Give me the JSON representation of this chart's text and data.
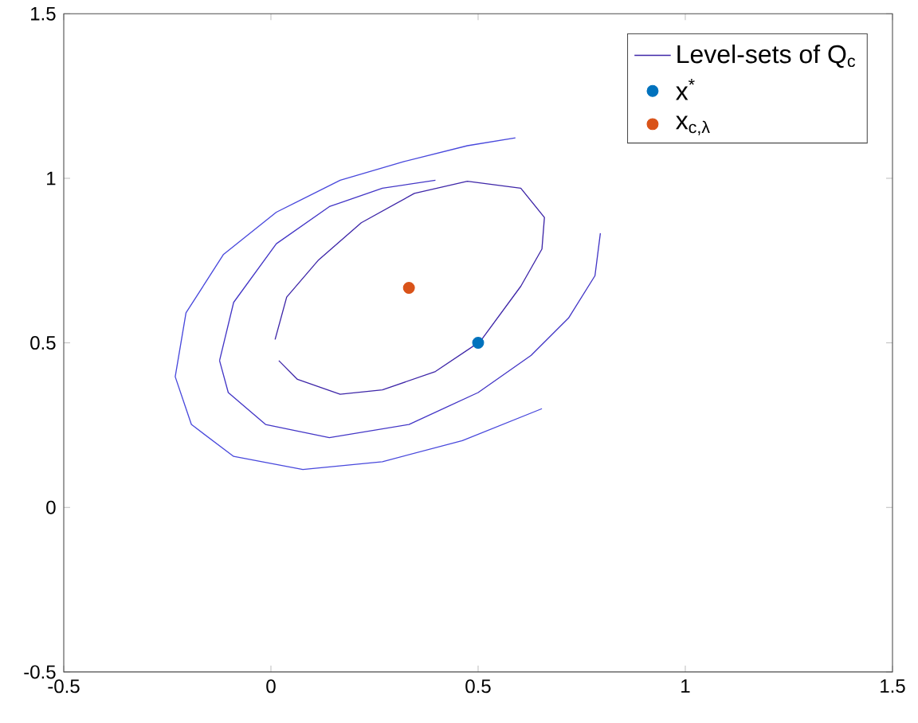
{
  "chart_data": {
    "type": "scatter",
    "xlim": [
      -0.5,
      1.5
    ],
    "ylim": [
      -0.5,
      1.5
    ],
    "xticks": [
      -0.5,
      0,
      0.5,
      1,
      1.5
    ],
    "yticks": [
      -0.5,
      0,
      0.5,
      1,
      1.5
    ],
    "legend": "top right",
    "series": [
      {
        "type": "line",
        "name": "Level-sets of Q$_{c}$",
        "color": "#3e26a8",
        "marker": "none",
        "x": [
          0.01,
          0.038,
          0.115,
          0.218,
          0.346,
          0.474,
          0.603,
          0.66,
          0.654,
          0.603,
          0.505,
          0.397,
          0.269,
          0.167,
          0.064,
          0.019
        ],
        "values": [
          0.51,
          0.639,
          0.752,
          0.865,
          0.954,
          0.991,
          0.97,
          0.881,
          0.785,
          0.672,
          0.504,
          0.413,
          0.357,
          0.344,
          0.389,
          0.446
        ]
      },
      {
        "type": "line",
        "color": "#4336c6",
        "marker": "none",
        "x": [
          -0.124,
          -0.09,
          0.013,
          0.141,
          0.269,
          0.397,
          null,
          0.795,
          0.782,
          0.718,
          0.628,
          0.5,
          0.333,
          0.141,
          -0.013,
          -0.103,
          -0.124
        ],
        "values": [
          0.446,
          0.623,
          0.801,
          0.914,
          0.97,
          0.994,
          null,
          0.833,
          0.704,
          0.575,
          0.462,
          0.349,
          0.252,
          0.212,
          0.252,
          0.349,
          0.446
        ]
      },
      {
        "type": "line",
        "color": "#4848dc",
        "marker": "none",
        "x": [
          0.654,
          0.462,
          0.269,
          0.077,
          -0.09,
          -0.192,
          -0.231,
          -0.205,
          -0.115,
          0.013,
          0.167,
          0.321,
          0.474,
          0.59
        ],
        "values": [
          0.3,
          0.203,
          0.139,
          0.115,
          0.155,
          0.252,
          0.397,
          0.591,
          0.768,
          0.897,
          0.994,
          1.051,
          1.099,
          1.123
        ]
      },
      {
        "name": "x$^{*}$",
        "color": "#0072bd",
        "marker": "circle",
        "x": [
          0.5
        ],
        "values": [
          0.5
        ]
      },
      {
        "name": "x$_{c,λ}$",
        "color": "#d95319",
        "marker": "circle",
        "x": [
          0.333
        ],
        "values": [
          0.667
        ]
      }
    ]
  }
}
